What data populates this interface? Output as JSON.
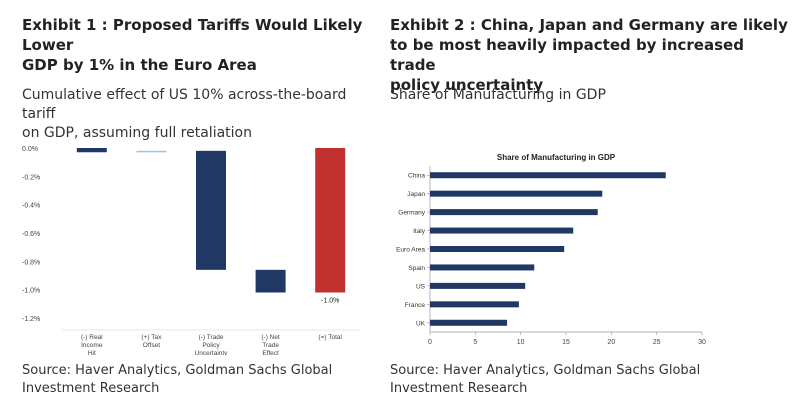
{
  "exhibit1": {
    "title_line1": "Exhibit 1 : Proposed Tariffs Would Likely Lower",
    "title_line2": "GDP by 1% in the Euro Area",
    "subtitle_line1": "Cumulative effect of US 10% across-the-board tariff",
    "subtitle_line2": "on GDP, assuming full retaliation",
    "source_line1": "Source: Haver Analytics, Goldman Sachs Global",
    "source_line2": "Investment Research"
  },
  "exhibit2": {
    "title_line1": "Exhibit 2 : China, Japan and Germany are likely",
    "title_line2": "to be most heavily impacted by increased trade",
    "title_line3": "policy uncertainty",
    "subtitle": "Share of Manufacturing in GDP",
    "source_line1": "Source: Haver Analytics, Goldman Sachs Global",
    "source_line2": "Investment Research"
  },
  "chart_data": [
    {
      "type": "waterfall",
      "title": "",
      "ylim": [
        -1.2,
        0.0
      ],
      "yticks": [
        "0.0%",
        "-0.2%",
        "-0.4%",
        "-0.6%",
        "-0.8%",
        "-1.0%",
        "-1.2%"
      ],
      "ytick_values": [
        0.0,
        -0.2,
        -0.4,
        -0.6,
        -0.8,
        -1.0,
        -1.2
      ],
      "categories": [
        [
          "(-) Real",
          "Income",
          "Hit"
        ],
        [
          "(+) Tax",
          "Offset"
        ],
        [
          "(-) Trade",
          "Policy",
          "Uncertainty"
        ],
        [
          "(-) Net",
          "Trade",
          "Effect"
        ],
        [
          "(=) Total"
        ]
      ],
      "bars": [
        {
          "start": 0.0,
          "end": -0.03,
          "color": "#1f3864"
        },
        {
          "start": -0.02,
          "end": -0.03,
          "color": "#9dc3e6"
        },
        {
          "start": -0.02,
          "end": -0.86,
          "color": "#1f3864"
        },
        {
          "start": -0.86,
          "end": -1.02,
          "color": "#1f3864"
        },
        {
          "start": 0.0,
          "end": -1.02,
          "color": "#c0312f"
        }
      ],
      "data_labels": [
        {
          "index": 4,
          "text": "-1.0%"
        }
      ]
    },
    {
      "type": "bar",
      "orientation": "horizontal",
      "title": "Share of Manufacturing in GDP",
      "categories": [
        "China",
        "Japan",
        "Germany",
        "Italy",
        "Euro Area",
        "Spain",
        "US",
        "France",
        "UK"
      ],
      "values": [
        26,
        19,
        18.5,
        15.8,
        14.8,
        11.5,
        10.5,
        9.8,
        8.5
      ],
      "xlim": [
        0,
        30
      ],
      "xticks": [
        "0",
        "5",
        "10",
        "15",
        "20",
        "25",
        "30"
      ],
      "xtick_values": [
        0,
        5,
        10,
        15,
        20,
        25,
        30
      ],
      "color": "#1f3864"
    }
  ]
}
